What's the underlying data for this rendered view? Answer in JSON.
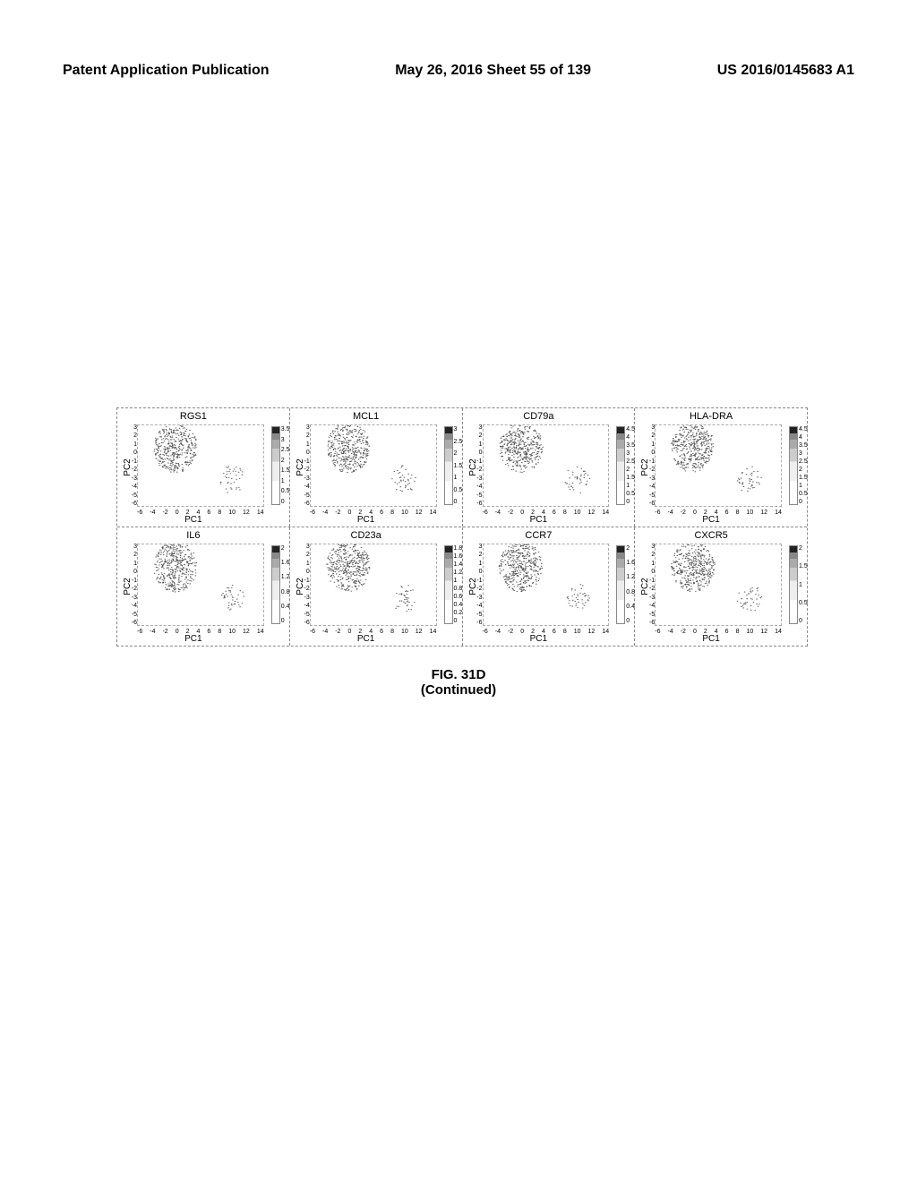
{
  "header": {
    "left": "Patent Application Publication",
    "center": "May 26, 2016  Sheet 55 of 139",
    "right": "US 2016/0145683 A1"
  },
  "caption": {
    "line1": "FIG. 31D",
    "line2": "(Continued)"
  },
  "common": {
    "xlabel": "PC1",
    "ylabel": "PC2",
    "xticks": [
      "-6",
      "-4",
      "-2",
      "0",
      "2",
      "4",
      "6",
      "8",
      "10",
      "12",
      "14"
    ],
    "yticks": [
      "-6",
      "-5",
      "-4",
      "-3",
      "-2",
      "-1",
      "0",
      "1",
      "2",
      "3"
    ]
  },
  "panels": [
    [
      {
        "title": "RGS1",
        "cmax": 3.5,
        "cticks": [
          "3.5",
          "3",
          "2.5",
          "2",
          "1.5",
          "1",
          "0.5",
          "0"
        ]
      },
      {
        "title": "MCL1",
        "cmax": 3,
        "cticks": [
          "3",
          "2.5",
          "2",
          "1.5",
          "1",
          "0.5",
          "0"
        ]
      },
      {
        "title": "CD79a",
        "cmax": 4.5,
        "cticks": [
          "4.5",
          "4",
          "3.5",
          "3",
          "2.5",
          "2",
          "1.5",
          "1",
          "0.5",
          "0"
        ]
      },
      {
        "title": "HLA-DRA",
        "cmax": 4.5,
        "cticks": [
          "4.5",
          "4",
          "3.5",
          "3",
          "2.5",
          "2",
          "1.5",
          "1",
          "0.5",
          "0"
        ]
      }
    ],
    [
      {
        "title": "IL6",
        "cmax": 2,
        "cticks": [
          "2",
          "1.6",
          "1.2",
          "0.8",
          "0.4",
          "0"
        ]
      },
      {
        "title": "CD23a",
        "cmax": 1.8,
        "cticks": [
          "1.8",
          "1.6",
          "1.4",
          "1.2",
          "1",
          "0.8",
          "0.6",
          "0.4",
          "0.2",
          "0"
        ]
      },
      {
        "title": "CCR7",
        "cmax": 2,
        "cticks": [
          "2",
          "1.6",
          "1.2",
          "0.8",
          "0.4",
          "0"
        ]
      },
      {
        "title": "CXCR5",
        "cmax": 2,
        "cticks": [
          "2",
          "1.5",
          "1",
          "0.5",
          "0"
        ]
      }
    ]
  ],
  "scatter": {
    "xlim": [
      -6,
      14
    ],
    "ylim": [
      -6,
      3
    ],
    "main_cluster_center": [
      0,
      0.5
    ],
    "main_cluster_radius": 3.5,
    "main_cluster_points": 420,
    "tail_cluster_center": [
      9,
      -3
    ],
    "tail_cluster_radius": 2.0,
    "tail_cluster_points": 40,
    "point_color": "#555555",
    "point_radius": 0.6
  }
}
